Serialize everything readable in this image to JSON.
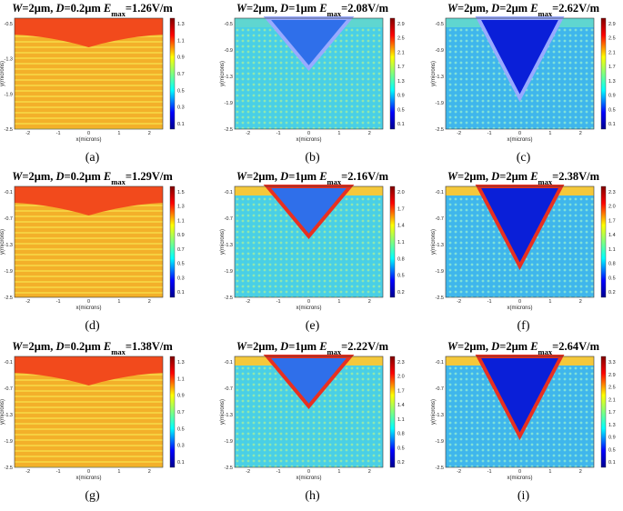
{
  "panels": [
    {
      "title": [
        "W",
        "=2μm, ",
        "D",
        "=0.2μm ",
        "E",
        "max",
        "=1.26V/m"
      ],
      "caption": "(a)",
      "colorbar": [
        "1.3",
        "1.1",
        "0.9",
        "0.7",
        "0.5",
        "0.3",
        "0.1"
      ],
      "xticks": [
        "-2",
        "-1",
        "0",
        "1",
        "2"
      ],
      "yticks": [
        "-0.5",
        "-1.3",
        "-1.9",
        "-2.5"
      ],
      "xlabel": "x(microns)",
      "ylabel": "y(microns)"
    },
    {
      "title": [
        "W",
        "=2μm, ",
        "D",
        "=1μm ",
        "E",
        "max",
        "=2.08V/m"
      ],
      "caption": "(b)",
      "colorbar": [
        "2.9",
        "2.5",
        "2.1",
        "1.7",
        "1.3",
        "0.9",
        "0.5",
        "0.1"
      ],
      "xticks": [
        "-2",
        "-1",
        "0",
        "1",
        "2"
      ],
      "yticks": [
        "-0.5",
        "-0.9",
        "-1.3",
        "-1.9",
        "-2.5"
      ],
      "xlabel": "x(microns)",
      "ylabel": "y(microns)"
    },
    {
      "title": [
        "W",
        "=2μm, ",
        "D",
        "=2μm ",
        "E",
        "max",
        "=2.62V/m"
      ],
      "caption": "(c)",
      "colorbar": [
        "2.9",
        "2.5",
        "2.1",
        "1.7",
        "1.3",
        "0.9",
        "0.5",
        "0.1"
      ],
      "xticks": [
        "-2",
        "-1",
        "0",
        "1",
        "2"
      ],
      "yticks": [
        "-0.5",
        "-0.9",
        "-1.3",
        "-1.9",
        "-2.5"
      ],
      "xlabel": "x(microns)",
      "ylabel": "y(microns)"
    },
    {
      "title": [
        "W",
        "=2μm, ",
        "D",
        "=0.2μm ",
        "E",
        "max",
        "=1.29V/m"
      ],
      "caption": "(d)",
      "colorbar": [
        "1.5",
        "1.3",
        "1.1",
        "0.9",
        "0.7",
        "0.5",
        "0.3",
        "0.1"
      ],
      "xticks": [
        "-2",
        "-1",
        "0",
        "1",
        "2"
      ],
      "yticks": [
        "-0.1",
        "-0.7",
        "-1.3",
        "-1.9",
        "-2.5"
      ],
      "xlabel": "x(microns)",
      "ylabel": "y(microns)"
    },
    {
      "title": [
        "W",
        "=2μm, ",
        "D",
        "=1μm ",
        "E",
        "max",
        "=2.16V/m"
      ],
      "caption": "(e)",
      "colorbar": [
        "2.0",
        "1.7",
        "1.4",
        "1.1",
        "0.8",
        "0.5",
        "0.2"
      ],
      "xticks": [
        "-2",
        "-1",
        "0",
        "1",
        "2"
      ],
      "yticks": [
        "-0.1",
        "-0.7",
        "-1.3",
        "-1.9",
        "-2.5"
      ],
      "xlabel": "x(microns)",
      "ylabel": "y(microns)"
    },
    {
      "title": [
        "W",
        "=2μm, ",
        "D",
        "=2μm ",
        "E",
        "max",
        "=2.38V/m"
      ],
      "caption": "(f)",
      "colorbar": [
        "2.3",
        "2.0",
        "1.7",
        "1.4",
        "1.1",
        "0.8",
        "0.5",
        "0.2"
      ],
      "xticks": [
        "-2",
        "-1",
        "0",
        "1",
        "2"
      ],
      "yticks": [
        "-0.1",
        "-0.7",
        "-1.3",
        "-1.9",
        "-2.5"
      ],
      "xlabel": "x(microns)",
      "ylabel": "y(microns)"
    },
    {
      "title": [
        "W",
        "=2μm, ",
        "D",
        "=0.2μm ",
        "E",
        "max",
        "=1.38V/m"
      ],
      "caption": "(g)",
      "colorbar": [
        "1.3",
        "1.1",
        "0.9",
        "0.7",
        "0.5",
        "0.3",
        "0.1"
      ],
      "xticks": [
        "-2",
        "-1",
        "0",
        "1",
        "2"
      ],
      "yticks": [
        "-0.1",
        "-0.7",
        "-1.3",
        "-1.9",
        "-2.5"
      ],
      "xlabel": "x(microns)",
      "ylabel": "y(microns)"
    },
    {
      "title": [
        "W",
        "=2μm, ",
        "D",
        "=1μm ",
        "E",
        "max",
        "=2.22V/m"
      ],
      "caption": "(h)",
      "colorbar": [
        "2.3",
        "2.0",
        "1.7",
        "1.4",
        "1.1",
        "0.8",
        "0.5",
        "0.2"
      ],
      "xticks": [
        "-2",
        "-1",
        "0",
        "1",
        "2"
      ],
      "yticks": [
        "-0.1",
        "-0.7",
        "-1.3",
        "-1.9",
        "-2.5"
      ],
      "xlabel": "x(microns)",
      "ylabel": "y(microns)"
    },
    {
      "title": [
        "W",
        "=2μm, ",
        "D",
        "=2μm ",
        "E",
        "max",
        "=2.64V/m"
      ],
      "caption": "(i)",
      "colorbar": [
        "3.3",
        "2.9",
        "2.5",
        "2.1",
        "1.7",
        "1.3",
        "0.9",
        "0.5",
        "0.1"
      ],
      "xticks": [
        "-2",
        "-1",
        "0",
        "1",
        "2"
      ],
      "yticks": [
        "-0.1",
        "-0.7",
        "-1.3",
        "-1.9",
        "-2.5"
      ],
      "xlabel": "x(microns)",
      "ylabel": "y(microns)"
    }
  ]
}
